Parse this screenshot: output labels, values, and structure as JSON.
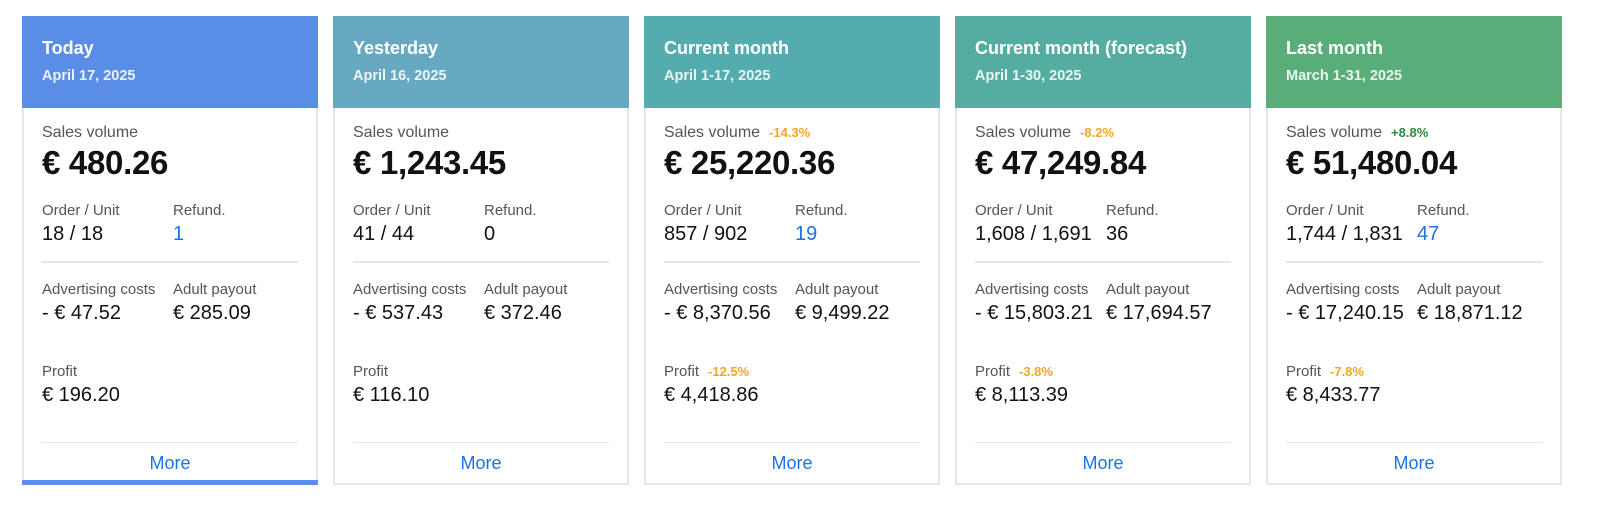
{
  "cards": [
    {
      "title": "Today",
      "subtitle": "April 17, 2025",
      "header_color": "#5a8ee6",
      "active": true,
      "sales_label": "Sales volume",
      "sales_badge": "",
      "sales_badge_type": "neg",
      "sales_value": "€ 480.26",
      "order_label": "Order / Unit",
      "order_value": "18 / 18",
      "refund_label": "Refund.",
      "refund_value": "1",
      "refund_link": true,
      "ad_label": "Advertising costs",
      "ad_value": "- € 47.52",
      "payout_label": "Adult payout",
      "payout_value": "€ 285.09",
      "profit_label": "Profit",
      "profit_badge": "",
      "profit_value": "€ 196.20",
      "more_label": "More"
    },
    {
      "title": "Yesterday",
      "subtitle": "April 16, 2025",
      "header_color": "#66a9c1",
      "active": false,
      "sales_label": "Sales volume",
      "sales_badge": "",
      "sales_badge_type": "neg",
      "sales_value": "€ 1,243.45",
      "order_label": "Order / Unit",
      "order_value": "41 / 44",
      "refund_label": "Refund.",
      "refund_value": "0",
      "refund_link": false,
      "ad_label": "Advertising costs",
      "ad_value": "- € 537.43",
      "payout_label": "Adult payout",
      "payout_value": "€ 372.46",
      "profit_label": "Profit",
      "profit_badge": "",
      "profit_value": "€ 116.10",
      "more_label": "More"
    },
    {
      "title": "Current month",
      "subtitle": "April 1-17, 2025",
      "header_color": "#55acae",
      "active": false,
      "sales_label": "Sales volume",
      "sales_badge": "-14.3%",
      "sales_badge_type": "neg",
      "sales_value": "€ 25,220.36",
      "order_label": "Order / Unit",
      "order_value": "857 / 902",
      "refund_label": "Refund.",
      "refund_value": "19",
      "refund_link": true,
      "ad_label": "Advertising costs",
      "ad_value": "- € 8,370.56",
      "payout_label": "Adult payout",
      "payout_value": "€ 9,499.22",
      "profit_label": "Profit",
      "profit_badge": "-12.5%",
      "profit_value": "€ 4,418.86",
      "more_label": "More"
    },
    {
      "title": "Current month (forecast)",
      "subtitle": "April 1-30, 2025",
      "header_color": "#55aca0",
      "active": false,
      "sales_label": "Sales volume",
      "sales_badge": "-8.2%",
      "sales_badge_type": "neg",
      "sales_value": "€ 47,249.84",
      "order_label": "Order / Unit",
      "order_value": "1,608 / 1,691",
      "refund_label": "Refund.",
      "refund_value": "36",
      "refund_link": false,
      "ad_label": "Advertising costs",
      "ad_value": "- € 15,803.21",
      "payout_label": "Adult payout",
      "payout_value": "€ 17,694.57",
      "profit_label": "Profit",
      "profit_badge": "-3.8%",
      "profit_value": "€ 8,113.39",
      "more_label": "More"
    },
    {
      "title": "Last month",
      "subtitle": "March 1-31, 2025",
      "header_color": "#58ad78",
      "active": false,
      "sales_label": "Sales volume",
      "sales_badge": "+8.8%",
      "sales_badge_type": "pos",
      "sales_value": "€ 51,480.04",
      "order_label": "Order / Unit",
      "order_value": "1,744 / 1,831",
      "refund_label": "Refund.",
      "refund_value": "47",
      "refund_link": true,
      "ad_label": "Advertising costs",
      "ad_value": "- € 17,240.15",
      "payout_label": "Adult payout",
      "payout_value": "€ 18,871.12",
      "profit_label": "Profit",
      "profit_badge": "-7.8%",
      "profit_value": "€ 8,433.77",
      "more_label": "More"
    }
  ]
}
